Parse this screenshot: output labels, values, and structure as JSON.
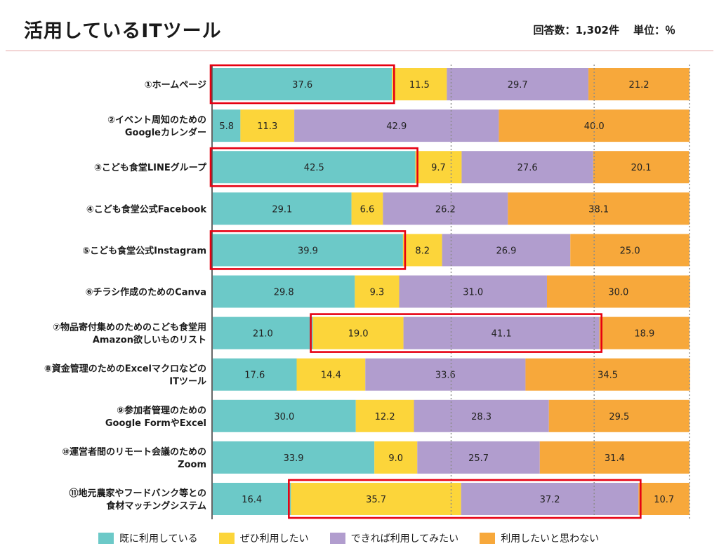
{
  "header": {
    "title": "活用しているITツール",
    "respondents": "回答数：1,302件",
    "unit": "単位：％"
  },
  "colors": {
    "already_using": "#6cc9c8",
    "want_to_use": "#fcd53a",
    "if_possible": "#b19dce",
    "not_wanted": "#f7a83b",
    "highlight": "#e60012"
  },
  "chart_data": {
    "type": "bar",
    "orientation": "horizontal",
    "stacked": true,
    "xlim": [
      0,
      100
    ],
    "grid": "dotted vertical at 50 and 80",
    "legend_placement": "bottom",
    "categories": [
      [
        "①ホームページ"
      ],
      [
        "②イベント周知のための",
        "Googleカレンダー"
      ],
      [
        "③こども食堂LINEグループ"
      ],
      [
        "④こども食堂公式Facebook"
      ],
      [
        "⑤こども食堂公式Instagram"
      ],
      [
        "⑥チラシ作成のためのCanva"
      ],
      [
        "⑦物品寄付集めのためのこども食堂用",
        "Amazon欲しいものリスト"
      ],
      [
        "⑧資金管理のためのExcelマクロなどの",
        "ITツール"
      ],
      [
        "⑨参加者管理のための",
        "Google FormやExcel"
      ],
      [
        "⑩運営者間のリモート会議のための",
        "Zoom"
      ],
      [
        "⑪地元農家やフードバンク等との",
        "食材マッチングシステム"
      ]
    ],
    "series": [
      {
        "name": "既に利用している",
        "values": [
          37.6,
          5.8,
          42.5,
          29.1,
          39.9,
          29.8,
          21.0,
          17.6,
          30.0,
          33.9,
          16.4
        ]
      },
      {
        "name": "ぜひ利用したい",
        "values": [
          11.5,
          11.3,
          9.7,
          6.6,
          8.2,
          9.3,
          19.0,
          14.4,
          12.2,
          9.0,
          35.7
        ]
      },
      {
        "name": "できれば利用してみたい",
        "values": [
          29.7,
          42.9,
          27.6,
          26.2,
          26.9,
          31.0,
          41.1,
          33.6,
          28.3,
          25.7,
          37.2
        ]
      },
      {
        "name": "利用したいと思わない",
        "values": [
          21.2,
          40.0,
          20.1,
          38.1,
          25.0,
          30.0,
          18.9,
          34.5,
          29.5,
          31.4,
          10.7
        ]
      }
    ],
    "highlights": [
      {
        "row": 0,
        "from_series": 0,
        "to_series": 0
      },
      {
        "row": 2,
        "from_series": 0,
        "to_series": 0
      },
      {
        "row": 4,
        "from_series": 0,
        "to_series": 0
      },
      {
        "row": 6,
        "from_series": 1,
        "to_series": 2
      },
      {
        "row": 10,
        "from_series": 1,
        "to_series": 2
      }
    ]
  }
}
